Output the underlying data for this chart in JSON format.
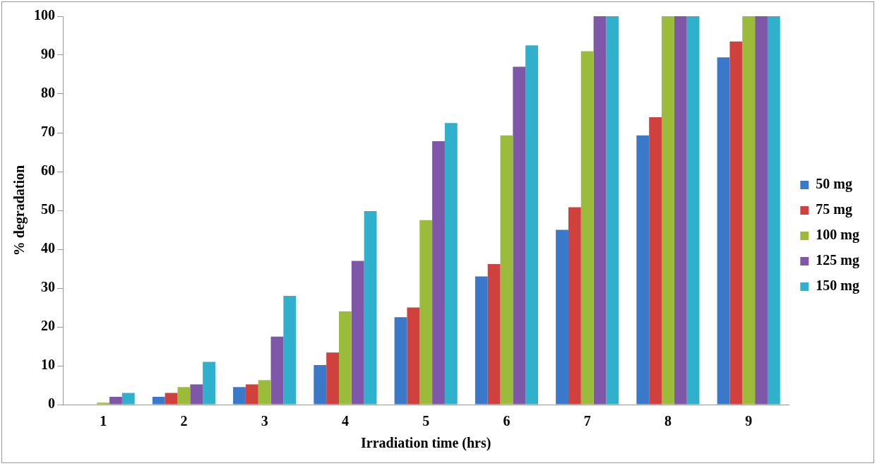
{
  "chart_data": {
    "type": "bar",
    "xlabel": "Irradiation time (hrs)",
    "ylabel": "% degradation",
    "categories": [
      "1",
      "2",
      "3",
      "4",
      "5",
      "6",
      "7",
      "8",
      "9"
    ],
    "series": [
      {
        "name": "50 mg",
        "color": "#3a78c9",
        "values": [
          0,
          2,
          4.5,
          10.2,
          22.5,
          33,
          45,
          69.3,
          89.4
        ]
      },
      {
        "name": "75 mg",
        "color": "#d0403c",
        "values": [
          0,
          3,
          5.2,
          13.4,
          25,
          36.2,
          50.8,
          74,
          93.5
        ]
      },
      {
        "name": "100 mg",
        "color": "#9bbb3b",
        "values": [
          0.5,
          4.5,
          6.3,
          24,
          47.5,
          69.3,
          91,
          100,
          100
        ]
      },
      {
        "name": "125 mg",
        "color": "#7f57a8",
        "values": [
          2,
          5.2,
          17.5,
          37,
          67.8,
          87,
          100,
          100,
          100
        ]
      },
      {
        "name": "150 mg",
        "color": "#2fb0cc",
        "values": [
          3,
          11,
          28,
          49.8,
          72.5,
          92.5,
          100,
          100,
          100
        ]
      }
    ],
    "ylim": [
      0,
      100
    ],
    "yticks": [
      0,
      10,
      20,
      30,
      40,
      50,
      60,
      70,
      80,
      90,
      100
    ],
    "grid": false,
    "legend": "right"
  }
}
